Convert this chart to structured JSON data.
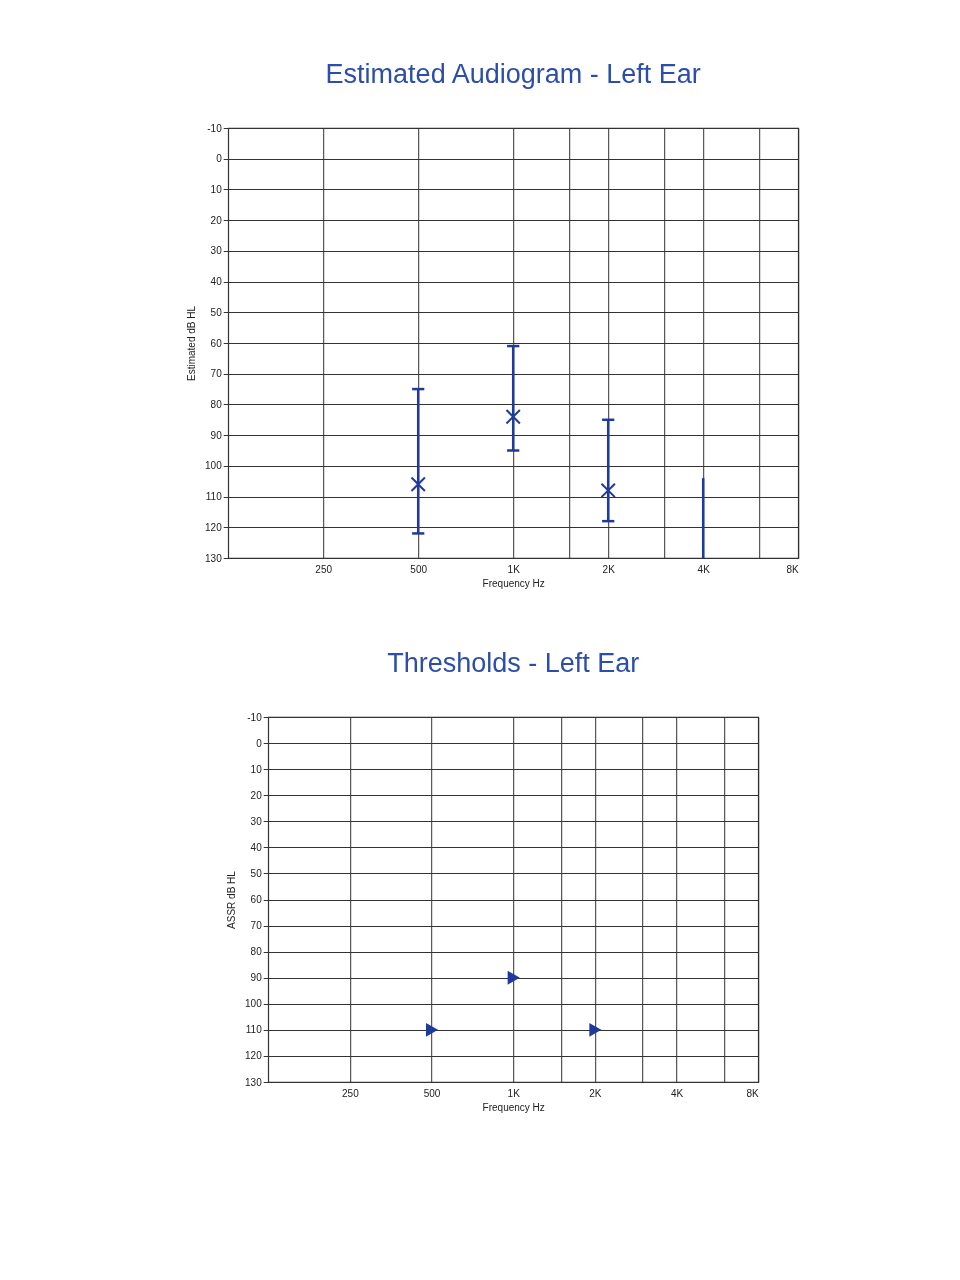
{
  "chart_data": [
    {
      "type": "scatter",
      "title": "Estimated Audiogram - Left Ear",
      "xlabel": "Frequency Hz",
      "ylabel": "Estimated dB HL",
      "x": [
        500,
        1000,
        2000
      ],
      "series": [
        {
          "color": "#1f3a9a",
          "values": [
            106,
            84,
            108
          ],
          "errors": [
            [
              75,
              122
            ],
            [
              61,
              95
            ],
            [
              85,
              118
            ]
          ]
        },
        {
          "type": "line",
          "marker": "none",
          "color": "#1f3a9a",
          "x": [
            4000,
            4000
          ],
          "values": [
            104,
            130
          ]
        }
      ],
      "xlim": [
        125,
        8000
      ],
      "ylim": [
        130,
        -10
      ],
      "xticks": [
        250,
        500,
        {
          "value": 1000,
          "label": "1K"
        },
        {
          "value": 1500,
          "label": null
        },
        {
          "value": 2000,
          "label": "2K"
        },
        {
          "value": 3000,
          "label": null
        },
        {
          "value": 4000,
          "label": "4K"
        },
        {
          "value": 6000,
          "label": null
        },
        {
          "value": 8000,
          "label": "8K"
        }
      ],
      "yticks": [
        -10,
        0,
        10,
        20,
        30,
        40,
        50,
        60,
        70,
        80,
        90,
        100,
        110,
        120,
        130
      ],
      "log": "x",
      "grid": true,
      "marker": "cross"
    },
    {
      "type": "scatter",
      "title": "Thresholds - Left Ear",
      "xlabel": "Frequency Hz",
      "ylabel": "ASSR dB HL",
      "x": [
        500,
        1000,
        2000
      ],
      "series": [
        {
          "color": "#1f3a9a",
          "values": [
            110,
            90,
            110
          ]
        }
      ],
      "xlim": [
        125,
        8000
      ],
      "ylim": [
        130,
        -10
      ],
      "xticks": [
        250,
        500,
        {
          "value": 1000,
          "label": "1K"
        },
        {
          "value": 1500,
          "label": null
        },
        {
          "value": 2000,
          "label": "2K"
        },
        {
          "value": 3000,
          "label": null
        },
        {
          "value": 4000,
          "label": "4K"
        },
        {
          "value": 6000,
          "label": null
        },
        {
          "value": 8000,
          "label": "8K"
        }
      ],
      "yticks": [
        -10,
        0,
        10,
        20,
        30,
        40,
        50,
        60,
        70,
        80,
        90,
        100,
        110,
        120,
        130
      ],
      "log": "x",
      "grid": true,
      "marker": "triangle"
    }
  ]
}
